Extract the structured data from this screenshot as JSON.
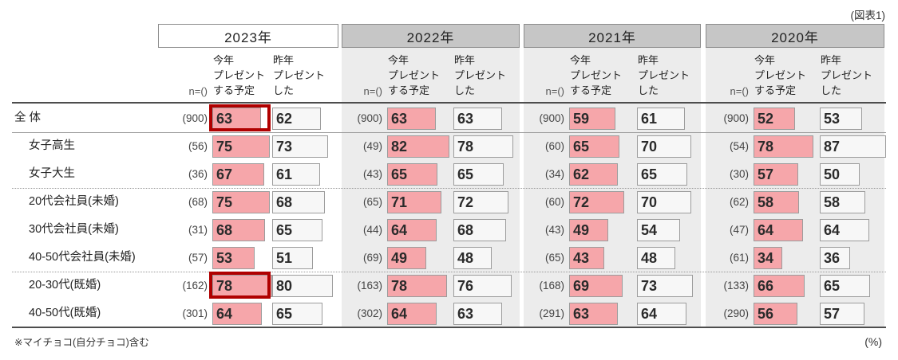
{
  "figure_label": "(図表1)",
  "unit_label": "(%)",
  "footnote": "※マイチョコ(自分チョコ)含む",
  "column_headers": {
    "n": "n=()",
    "plan": "今年\nプレゼント\nする予定",
    "last": "昨年\nプレゼント\nした"
  },
  "colors": {
    "plan_bar": "#f6a6aa",
    "last_bar": "#f7f7f7",
    "bar_border": "#9c9c9c",
    "highlight_border": "#b00000",
    "year_header_bg": "#c6c6c6",
    "block_bg": "#ececec"
  },
  "chart_data": {
    "type": "table",
    "title": "",
    "unit": "%",
    "row_categories": [
      "全 体",
      "女子高生",
      "女子大生",
      "20代会社員(未婚)",
      "30代会社員(未婚)",
      "40-50代会社員(未婚)",
      "20-30代(既婚)",
      "40-50代(既婚)"
    ],
    "column_labels": [
      "n=()",
      "今年プレゼントする予定",
      "昨年プレゼントした"
    ],
    "years": [
      {
        "year": "2023年",
        "n": [
          "(900)",
          "(56)",
          "(36)",
          "(68)",
          "(31)",
          "(57)",
          "(162)",
          "(301)"
        ],
        "plan": [
          63,
          75,
          67,
          75,
          68,
          53,
          78,
          64
        ],
        "last": [
          62,
          73,
          61,
          68,
          65,
          51,
          80,
          65
        ]
      },
      {
        "year": "2022年",
        "n": [
          "(900)",
          "(49)",
          "(43)",
          "(65)",
          "(44)",
          "(69)",
          "(163)",
          "(302)"
        ],
        "plan": [
          63,
          82,
          65,
          71,
          64,
          49,
          78,
          64
        ],
        "last": [
          63,
          78,
          65,
          72,
          68,
          48,
          76,
          63
        ]
      },
      {
        "year": "2021年",
        "n": [
          "(900)",
          "(60)",
          "(34)",
          "(60)",
          "(43)",
          "(65)",
          "(168)",
          "(291)"
        ],
        "plan": [
          59,
          65,
          62,
          72,
          49,
          43,
          69,
          63
        ],
        "last": [
          61,
          70,
          65,
          70,
          54,
          48,
          73,
          64
        ]
      },
      {
        "year": "2020年",
        "n": [
          "(900)",
          "(54)",
          "(30)",
          "(62)",
          "(47)",
          "(61)",
          "(133)",
          "(290)"
        ],
        "plan": [
          52,
          78,
          57,
          58,
          64,
          34,
          66,
          56
        ],
        "last": [
          53,
          87,
          50,
          58,
          64,
          36,
          65,
          57
        ]
      }
    ],
    "highlights": [
      {
        "year": "2023年",
        "year_index": 0,
        "row": "全 体",
        "row_index": 0,
        "column": "plan"
      },
      {
        "year": "2023年",
        "year_index": 0,
        "row": "20-30代(既婚)",
        "row_index": 6,
        "column": "plan"
      }
    ],
    "legend": {
      "plan_color_meaning": "今年プレゼントする予定 (pink bar, width = %)",
      "last_color_meaning": "昨年プレゼントした (gray box, width = %)"
    }
  }
}
